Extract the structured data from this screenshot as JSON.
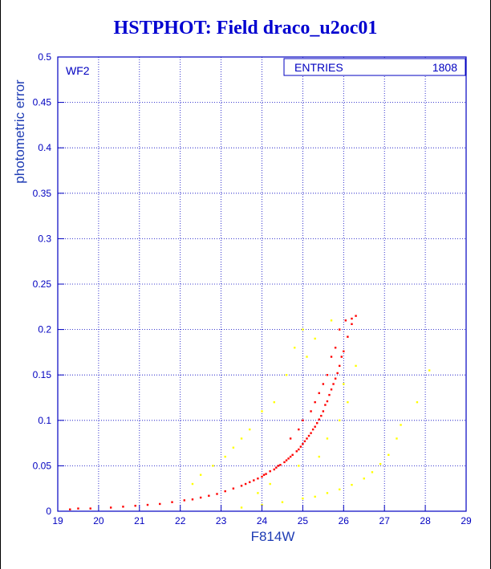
{
  "title": "HSTPHOT: Field draco_u2oc01",
  "chart_data": {
    "type": "scatter",
    "title": "HSTPHOT: Field draco_u2oc01",
    "xlabel": "F814W",
    "ylabel": "photometric error",
    "xlim": [
      19,
      29
    ],
    "ylim": [
      0,
      0.5
    ],
    "x_ticks": [
      "19",
      "20",
      "21",
      "22",
      "23",
      "24",
      "25",
      "26",
      "27",
      "28",
      "29"
    ],
    "y_ticks": [
      "0",
      "0.05",
      "0.1",
      "0.15",
      "0.2",
      "0.25",
      "0.3",
      "0.35",
      "0.4",
      "0.45",
      "0.5"
    ],
    "grid": true,
    "panel_label": "WF2",
    "stats_box": {
      "label": "ENTRIES",
      "value": "1808"
    },
    "colors": {
      "axes": "#0000c0",
      "grid": "#0000c0",
      "primary": "#ff0000",
      "secondary": "#ffff00"
    },
    "series": [
      {
        "color": "#ff0000",
        "points": [
          [
            19.3,
            0.002
          ],
          [
            19.5,
            0.003
          ],
          [
            19.8,
            0.003
          ],
          [
            20.3,
            0.004
          ],
          [
            20.6,
            0.005
          ],
          [
            20.9,
            0.006
          ],
          [
            21.2,
            0.007
          ],
          [
            21.5,
            0.008
          ],
          [
            21.8,
            0.01
          ],
          [
            22.1,
            0.012
          ],
          [
            22.3,
            0.013
          ],
          [
            22.5,
            0.015
          ],
          [
            22.7,
            0.017
          ],
          [
            22.9,
            0.019
          ],
          [
            23.1,
            0.022
          ],
          [
            23.3,
            0.025
          ],
          [
            23.5,
            0.028
          ],
          [
            23.6,
            0.03
          ],
          [
            23.8,
            0.034
          ],
          [
            24.0,
            0.038
          ],
          [
            24.1,
            0.041
          ],
          [
            24.3,
            0.046
          ],
          [
            24.4,
            0.05
          ],
          [
            24.6,
            0.056
          ],
          [
            24.7,
            0.06
          ],
          [
            24.9,
            0.068
          ],
          [
            25.0,
            0.074
          ],
          [
            25.1,
            0.08
          ],
          [
            25.2,
            0.086
          ],
          [
            25.3,
            0.093
          ],
          [
            25.4,
            0.101
          ],
          [
            25.5,
            0.11
          ],
          [
            25.6,
            0.121
          ],
          [
            25.7,
            0.134
          ],
          [
            25.8,
            0.146
          ],
          [
            25.9,
            0.16
          ],
          [
            26.0,
            0.176
          ],
          [
            26.1,
            0.192
          ],
          [
            26.2,
            0.206
          ],
          [
            26.3,
            0.215
          ],
          [
            26.2,
            0.212
          ],
          [
            25.95,
            0.17
          ],
          [
            25.85,
            0.152
          ],
          [
            25.75,
            0.14
          ],
          [
            25.65,
            0.128
          ],
          [
            25.55,
            0.117
          ],
          [
            25.45,
            0.105
          ],
          [
            25.35,
            0.097
          ],
          [
            25.25,
            0.09
          ],
          [
            25.15,
            0.083
          ],
          [
            25.05,
            0.077
          ],
          [
            24.95,
            0.071
          ],
          [
            24.85,
            0.066
          ],
          [
            24.75,
            0.062
          ],
          [
            24.65,
            0.058
          ],
          [
            24.55,
            0.054
          ],
          [
            24.45,
            0.051
          ],
          [
            24.35,
            0.048
          ],
          [
            24.2,
            0.044
          ],
          [
            24.05,
            0.04
          ],
          [
            23.9,
            0.036
          ],
          [
            23.7,
            0.032
          ],
          [
            25.2,
            0.11
          ],
          [
            25.4,
            0.13
          ],
          [
            25.6,
            0.15
          ],
          [
            25.8,
            0.18
          ],
          [
            25.7,
            0.17
          ],
          [
            25.9,
            0.2
          ],
          [
            26.05,
            0.21
          ],
          [
            25.5,
            0.14
          ],
          [
            25.3,
            0.12
          ],
          [
            24.9,
            0.09
          ],
          [
            24.7,
            0.08
          ],
          [
            25.0,
            0.1
          ]
        ]
      },
      {
        "color": "#ffff00",
        "points": [
          [
            23.5,
            0.004
          ],
          [
            24.0,
            0.007
          ],
          [
            24.5,
            0.01
          ],
          [
            25.0,
            0.014
          ],
          [
            25.3,
            0.016
          ],
          [
            25.6,
            0.02
          ],
          [
            25.9,
            0.024
          ],
          [
            26.2,
            0.029
          ],
          [
            26.5,
            0.036
          ],
          [
            26.7,
            0.043
          ],
          [
            26.9,
            0.052
          ],
          [
            27.1,
            0.062
          ],
          [
            27.3,
            0.08
          ],
          [
            27.4,
            0.095
          ],
          [
            27.8,
            0.12
          ],
          [
            28.1,
            0.155
          ],
          [
            25.0,
            0.2
          ],
          [
            24.8,
            0.18
          ],
          [
            25.3,
            0.19
          ],
          [
            25.1,
            0.17
          ],
          [
            24.6,
            0.15
          ],
          [
            24.3,
            0.12
          ],
          [
            24.0,
            0.11
          ],
          [
            23.7,
            0.09
          ],
          [
            23.5,
            0.08
          ],
          [
            23.3,
            0.07
          ],
          [
            23.1,
            0.06
          ],
          [
            22.8,
            0.05
          ],
          [
            22.5,
            0.04
          ],
          [
            22.3,
            0.03
          ],
          [
            25.6,
            0.08
          ],
          [
            25.9,
            0.1
          ],
          [
            26.1,
            0.12
          ],
          [
            25.4,
            0.06
          ],
          [
            24.9,
            0.05
          ],
          [
            26.3,
            0.16
          ],
          [
            26.0,
            0.14
          ],
          [
            25.7,
            0.21
          ],
          [
            24.2,
            0.03
          ],
          [
            23.9,
            0.02
          ]
        ]
      }
    ]
  }
}
